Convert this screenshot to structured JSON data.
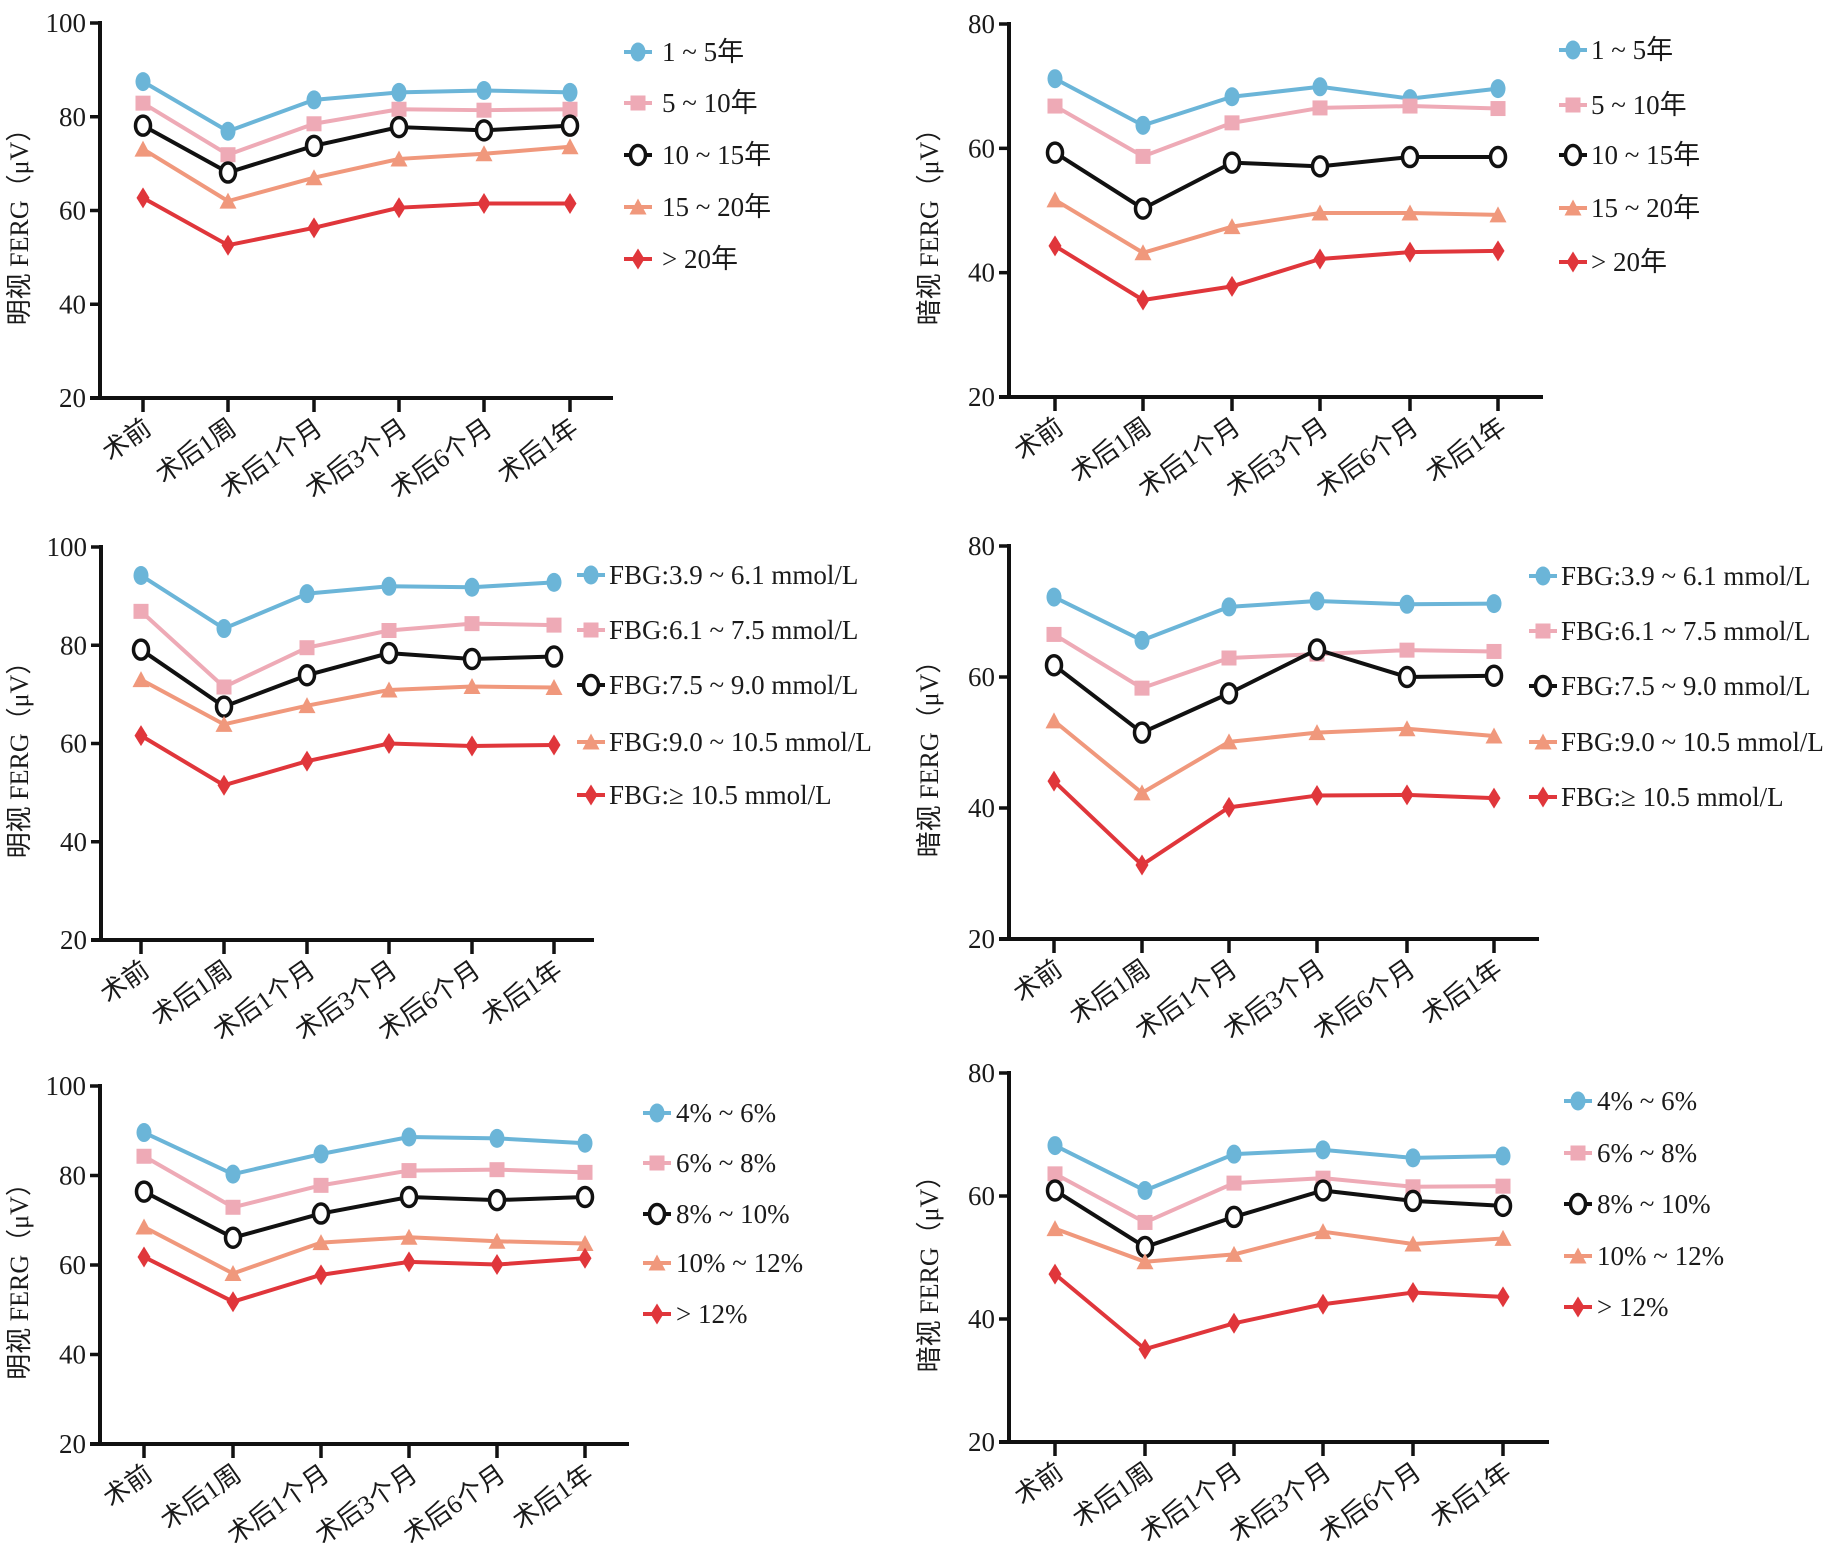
{
  "figure": {
    "colors": {
      "blue": "#6bb5d8",
      "pink": "#eeaab6",
      "black": "#111111",
      "orange": "#f0987c",
      "red": "#e0363b"
    },
    "markers": [
      "circle",
      "square",
      "open-circle",
      "triangle",
      "diamond"
    ]
  },
  "chart_data": [
    {
      "id": "duration-photopic",
      "type": "line",
      "title": "",
      "xlabel": "",
      "ylabel": "明视 FERG（μV）",
      "categories": [
        "术前",
        "术后1周",
        "术后1个月",
        "术后3个月",
        "术后6个月",
        "术后1年"
      ],
      "ylim": [
        20,
        100
      ],
      "yticks": [
        20,
        40,
        60,
        80,
        100
      ],
      "grid": false,
      "legend": "right",
      "series": [
        {
          "name": "1 ~ 5年",
          "color": "blue",
          "marker": "circle",
          "values": [
            87.5,
            76.9,
            83.6,
            85.2,
            85.6,
            85.2
          ]
        },
        {
          "name": "5 ~ 10年",
          "color": "pink",
          "marker": "square",
          "values": [
            82.9,
            71.9,
            78.5,
            81.6,
            81.4,
            81.6
          ]
        },
        {
          "name": "10 ~ 15年",
          "color": "black",
          "marker": "open-circle",
          "values": [
            78.1,
            68.1,
            73.8,
            77.8,
            77.1,
            78.1
          ]
        },
        {
          "name": "15 ~ 20年",
          "color": "orange",
          "marker": "triangle",
          "values": [
            73.1,
            62.0,
            67.0,
            71.0,
            72.1,
            73.6
          ]
        },
        {
          "name": "> 20年",
          "color": "red",
          "marker": "diamond",
          "values": [
            62.7,
            52.6,
            56.3,
            60.6,
            61.5,
            61.5
          ]
        }
      ]
    },
    {
      "id": "duration-scotopic",
      "type": "line",
      "title": "",
      "xlabel": "",
      "ylabel": "暗视 FERG（μV）",
      "categories": [
        "术前",
        "术后1周",
        "术后1个月",
        "术后3个月",
        "术后6个月",
        "术后1年"
      ],
      "ylim": [
        20,
        80
      ],
      "yticks": [
        20,
        40,
        60,
        80
      ],
      "grid": false,
      "legend": "right",
      "series": [
        {
          "name": "1 ~ 5年",
          "color": "blue",
          "marker": "circle",
          "values": [
            71.2,
            63.7,
            68.3,
            69.9,
            68.0,
            69.6
          ]
        },
        {
          "name": "5 ~ 10年",
          "color": "pink",
          "marker": "square",
          "values": [
            66.8,
            58.7,
            64.1,
            66.5,
            66.8,
            66.4
          ]
        },
        {
          "name": "10 ~ 15年",
          "color": "black",
          "marker": "open-circle",
          "values": [
            59.3,
            50.3,
            57.7,
            57.1,
            58.6,
            58.6
          ]
        },
        {
          "name": "15 ~ 20年",
          "color": "orange",
          "marker": "triangle",
          "values": [
            51.7,
            43.2,
            47.4,
            49.6,
            49.6,
            49.3
          ]
        },
        {
          "name": "> 20年",
          "color": "red",
          "marker": "diamond",
          "values": [
            44.3,
            35.6,
            37.8,
            42.2,
            43.3,
            43.5
          ]
        }
      ]
    },
    {
      "id": "fbg-photopic",
      "type": "line",
      "title": "",
      "xlabel": "",
      "ylabel": "明视 FERG（μV）",
      "categories": [
        "术前",
        "术后1周",
        "术后1个月",
        "术后3个月",
        "术后6个月",
        "术后1年"
      ],
      "ylim": [
        20,
        100
      ],
      "yticks": [
        20,
        40,
        60,
        80,
        100
      ],
      "grid": false,
      "legend": "right",
      "series": [
        {
          "name": "FBG:3.9 ~ 6.1 mmol/L",
          "color": "blue",
          "marker": "circle",
          "values": [
            94.2,
            83.4,
            90.5,
            92.0,
            91.8,
            92.8
          ]
        },
        {
          "name": "FBG:6.1 ~ 7.5 mmol/L",
          "color": "pink",
          "marker": "square",
          "values": [
            86.9,
            71.5,
            79.5,
            83.0,
            84.4,
            84.1
          ]
        },
        {
          "name": "FBG:7.5 ~ 9.0 mmol/L",
          "color": "black",
          "marker": "open-circle",
          "values": [
            79.1,
            67.5,
            73.9,
            78.4,
            77.2,
            77.7
          ]
        },
        {
          "name": "FBG:9.0 ~ 10.5 mmol/L",
          "color": "orange",
          "marker": "triangle",
          "values": [
            73.0,
            63.9,
            67.7,
            70.9,
            71.6,
            71.4
          ]
        },
        {
          "name": "FBG:≥ 10.5 mmol/L",
          "color": "red",
          "marker": "diamond",
          "values": [
            61.6,
            51.5,
            56.4,
            60.0,
            59.5,
            59.7
          ]
        }
      ]
    },
    {
      "id": "fbg-scotopic",
      "type": "line",
      "title": "",
      "xlabel": "",
      "ylabel": "暗视 FERG（μV）",
      "categories": [
        "术前",
        "术后1周",
        "术后1个月",
        "术后3个月",
        "术后6个月",
        "术后1年"
      ],
      "ylim": [
        20,
        80
      ],
      "yticks": [
        20,
        40,
        60,
        80
      ],
      "grid": false,
      "legend": "right",
      "series": [
        {
          "name": "FBG:3.9 ~ 6.1 mmol/L",
          "color": "blue",
          "marker": "circle",
          "values": [
            72.2,
            65.6,
            70.7,
            71.6,
            71.1,
            71.2
          ]
        },
        {
          "name": "FBG:6.1 ~ 7.5 mmol/L",
          "color": "pink",
          "marker": "square",
          "values": [
            66.5,
            58.3,
            62.9,
            63.5,
            64.1,
            63.9
          ]
        },
        {
          "name": "FBG:7.5 ~ 9.0 mmol/L",
          "color": "black",
          "marker": "open-circle",
          "values": [
            61.8,
            51.5,
            57.5,
            64.2,
            60.0,
            60.2
          ]
        },
        {
          "name": "FBG:9.0 ~ 10.5 mmol/L",
          "color": "orange",
          "marker": "triangle",
          "values": [
            53.3,
            42.3,
            50.1,
            51.5,
            52.1,
            51.0
          ]
        },
        {
          "name": "FBG:≥ 10.5 mmol/L",
          "color": "red",
          "marker": "diamond",
          "values": [
            44.1,
            31.3,
            40.1,
            41.9,
            42.0,
            41.5
          ]
        }
      ]
    },
    {
      "id": "hba1c-photopic",
      "type": "line",
      "title": "",
      "xlabel": "",
      "ylabel": "明视 FERG（μV）",
      "categories": [
        "术前",
        "术后1周",
        "术后1个月",
        "术后3个月",
        "术后6个月",
        "术后1年"
      ],
      "ylim": [
        20,
        100
      ],
      "yticks": [
        20,
        40,
        60,
        80,
        100
      ],
      "grid": false,
      "legend": "right",
      "series": [
        {
          "name": "4% ~ 6%",
          "color": "blue",
          "marker": "circle",
          "values": [
            89.6,
            80.3,
            84.8,
            88.6,
            88.3,
            87.2
          ]
        },
        {
          "name": "6% ~ 8%",
          "color": "pink",
          "marker": "square",
          "values": [
            84.3,
            72.9,
            77.8,
            81.1,
            81.3,
            80.7
          ]
        },
        {
          "name": "8% ~ 10%",
          "color": "black",
          "marker": "open-circle",
          "values": [
            76.4,
            66.1,
            71.5,
            75.2,
            74.5,
            75.2
          ]
        },
        {
          "name": "10% ~ 12%",
          "color": "orange",
          "marker": "triangle",
          "values": [
            68.5,
            58.1,
            65.0,
            66.2,
            65.3,
            64.8
          ]
        },
        {
          "name": "> 12%",
          "color": "red",
          "marker": "diamond",
          "values": [
            61.8,
            51.8,
            57.8,
            60.7,
            60.1,
            61.5
          ]
        }
      ]
    },
    {
      "id": "hba1c-scotopic",
      "type": "line",
      "title": "",
      "xlabel": "",
      "ylabel": "暗视 FERG（μV）",
      "categories": [
        "术前",
        "术后1周",
        "术后1个月",
        "术后3个月",
        "术后6个月",
        "术后1年"
      ],
      "ylim": [
        20,
        80
      ],
      "yticks": [
        20,
        40,
        60,
        80
      ],
      "grid": false,
      "legend": "right",
      "series": [
        {
          "name": "4% ~ 6%",
          "color": "blue",
          "marker": "circle",
          "values": [
            68.2,
            60.9,
            66.8,
            67.5,
            66.2,
            66.5
          ]
        },
        {
          "name": "6% ~ 8%",
          "color": "pink",
          "marker": "square",
          "values": [
            63.6,
            55.7,
            62.1,
            62.9,
            61.5,
            61.6
          ]
        },
        {
          "name": "8% ~ 10%",
          "color": "black",
          "marker": "open-circle",
          "values": [
            60.9,
            51.7,
            56.6,
            60.9,
            59.2,
            58.4
          ]
        },
        {
          "name": "10% ~ 12%",
          "color": "orange",
          "marker": "triangle",
          "values": [
            54.7,
            49.3,
            50.5,
            54.2,
            52.2,
            53.1
          ]
        },
        {
          "name": "> 12%",
          "color": "red",
          "marker": "diamond",
          "values": [
            47.3,
            35.1,
            39.3,
            42.4,
            44.3,
            43.6
          ]
        }
      ]
    }
  ]
}
